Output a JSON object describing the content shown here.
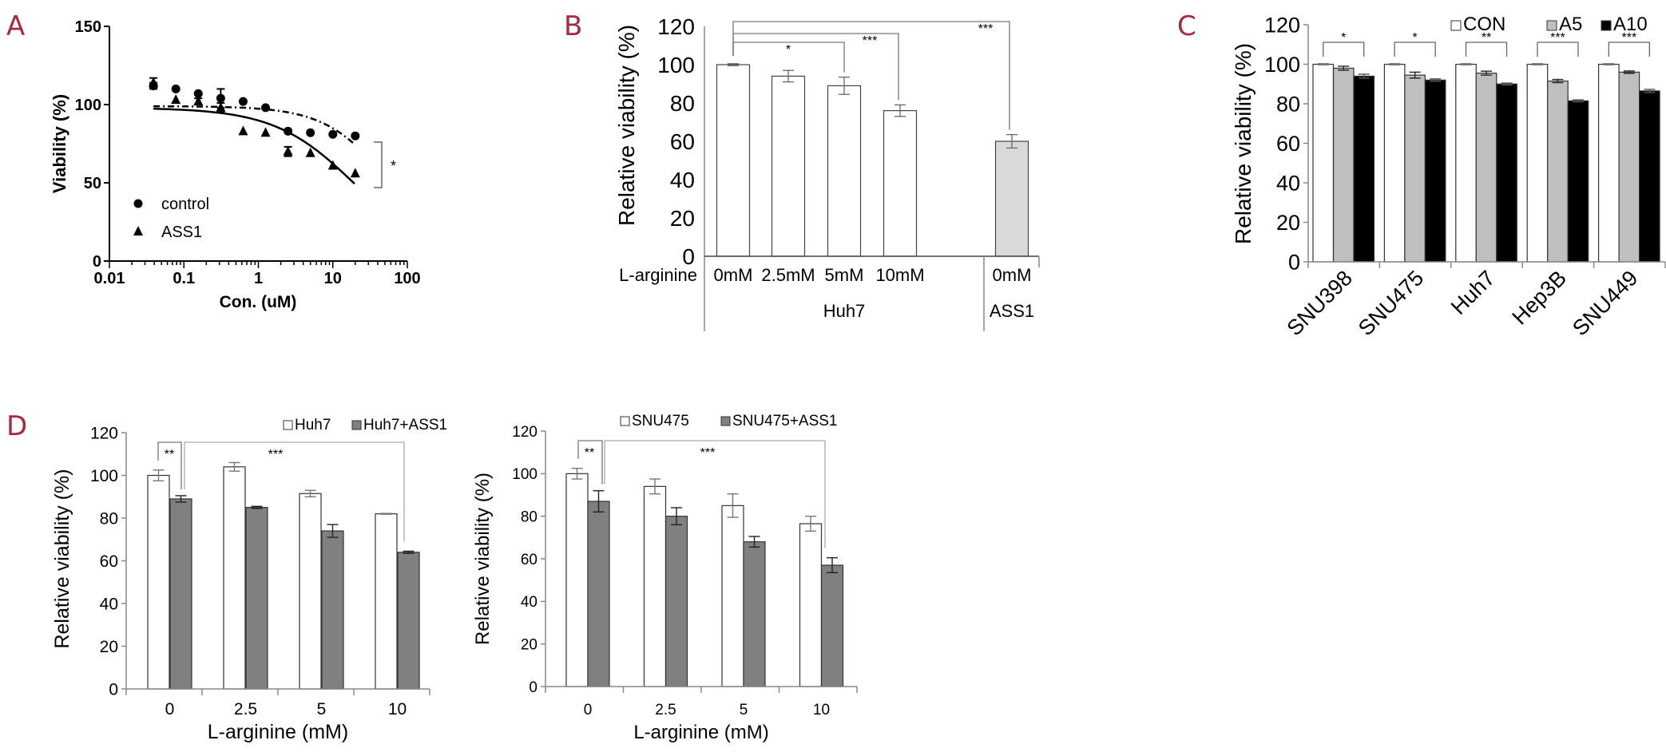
{
  "panels": {
    "labels": [
      "A",
      "B",
      "C",
      "D"
    ]
  },
  "colors": {
    "panel_label": "#a8283f",
    "white_bar": "#ffffff",
    "light_gray_bar": "#d9d9d9",
    "mid_gray_bar": "#bfbfbf",
    "dark_gray_bar": "#808080",
    "black_bar": "#000000"
  },
  "chart_data": [
    {
      "id": "A",
      "type": "scatter",
      "xscale": "log",
      "xlim": [
        0.01,
        100
      ],
      "ylim": [
        0,
        150
      ],
      "xticks": [
        "0.01",
        "0.1",
        "1",
        "10",
        "100"
      ],
      "yticks": [
        "0",
        "50",
        "100",
        "150"
      ],
      "xlabel": "Con. (uM)",
      "ylabel": "Viability (%)",
      "series": [
        {
          "name": "control",
          "marker": "circle",
          "fit_style": "dash-dot",
          "x": [
            0.039,
            0.078,
            0.156,
            0.3125,
            0.625,
            1.25,
            2.5,
            5,
            10,
            20
          ],
          "y": [
            112,
            110,
            107,
            104,
            102,
            98,
            83,
            82,
            81,
            80
          ],
          "err": [
            2,
            1.5,
            1.5,
            6,
            1,
            1,
            1,
            1,
            1,
            1
          ],
          "fit": {
            "top": 99,
            "bottom": 0,
            "ec50": 60,
            "hill": 1
          }
        },
        {
          "name": "ASS1",
          "marker": "triangle",
          "fit_style": "solid",
          "x": [
            0.039,
            0.078,
            0.156,
            0.3125,
            0.625,
            1.25,
            2.5,
            5,
            10,
            20
          ],
          "y": [
            114,
            103,
            102,
            98,
            83,
            82,
            70,
            69,
            61,
            56
          ],
          "err": [
            3,
            1,
            2,
            3,
            1,
            1,
            3,
            1,
            1,
            1
          ],
          "fit": {
            "top": 98,
            "bottom": 0,
            "ec50": 20,
            "hill": 0.8
          }
        }
      ],
      "legend": "bottom-left",
      "significance": [
        {
          "between": [
            "control",
            "ASS1"
          ],
          "text": "*"
        }
      ]
    },
    {
      "id": "B",
      "type": "bar",
      "ylim": [
        0,
        120
      ],
      "yticks": [
        "0",
        "20",
        "40",
        "60",
        "80",
        "100",
        "120"
      ],
      "ylabel": "Relative viability (%)",
      "row_label": "L-arginine",
      "categories": [
        "0mM",
        "2.5mM",
        "5mM",
        "10mM",
        "0mM"
      ],
      "groups": [
        {
          "label": "Huh7",
          "count": 4
        },
        {
          "label": "ASS1",
          "count": 1
        }
      ],
      "values": [
        100,
        94,
        89,
        76,
        60
      ],
      "errors": [
        0.5,
        3,
        4.5,
        3,
        3.5
      ],
      "bar_colors": [
        "#ffffff",
        "#ffffff",
        "#ffffff",
        "#ffffff",
        "#d9d9d9"
      ],
      "significance": [
        {
          "from": 0,
          "to": 2,
          "text": "*"
        },
        {
          "from": 0,
          "to": 3,
          "text": "***"
        },
        {
          "from": 0,
          "to": 4,
          "text": "***"
        }
      ]
    },
    {
      "id": "C",
      "type": "bar",
      "ylim": [
        0,
        120
      ],
      "yticks": [
        "0",
        "20",
        "40",
        "60",
        "80",
        "100",
        "120"
      ],
      "ylabel": "Relative viability (%)",
      "categories": [
        "SNU398",
        "SNU475",
        "Huh7",
        "Hep3B",
        "SNU449"
      ],
      "series": [
        {
          "name": "CON",
          "color": "#ffffff",
          "values": [
            100,
            100,
            100,
            100,
            100
          ],
          "errors": [
            0.3,
            0.3,
            0.3,
            0.3,
            0.3
          ]
        },
        {
          "name": "A5",
          "color": "#bfbfbf",
          "values": [
            98,
            94.5,
            95.5,
            91.5,
            96
          ],
          "errors": [
            1,
            1.5,
            1,
            0.8,
            0.6
          ]
        },
        {
          "name": "A10",
          "color": "#000000",
          "values": [
            94,
            92,
            90,
            81.5,
            86.5
          ],
          "errors": [
            1,
            0.6,
            0.5,
            0.5,
            0.8
          ]
        }
      ],
      "legend": "top-right",
      "significance": [
        "*",
        "*",
        "**",
        "***",
        "***"
      ]
    },
    {
      "id": "D-left",
      "type": "bar",
      "ylim": [
        0,
        120
      ],
      "yticks": [
        "0",
        "20",
        "40",
        "60",
        "80",
        "100",
        "120"
      ],
      "ylabel": "Relative viability (%)",
      "xlabel": "L-arginine (mM)",
      "categories": [
        "0",
        "2.5",
        "5",
        "10"
      ],
      "series": [
        {
          "name": "Huh7",
          "color": "#ffffff",
          "values": [
            100,
            104,
            91.5,
            82
          ],
          "errors": [
            2.5,
            2,
            1.5,
            0.2
          ]
        },
        {
          "name": "Huh7+ASS1",
          "color": "#808080",
          "values": [
            89,
            85,
            74,
            64
          ],
          "errors": [
            1.5,
            0.5,
            3,
            0.5
          ]
        }
      ],
      "legend": "top-right",
      "significance": [
        {
          "text": "**"
        },
        {
          "text": "***"
        }
      ]
    },
    {
      "id": "D-right",
      "type": "bar",
      "ylim": [
        0,
        120
      ],
      "yticks": [
        "0",
        "20",
        "40",
        "60",
        "80",
        "100",
        "120"
      ],
      "ylabel": "Relative viability (%)",
      "xlabel": "L-arginine (mM)",
      "categories": [
        "0",
        "2.5",
        "5",
        "10"
      ],
      "series": [
        {
          "name": "SNU475",
          "color": "#ffffff",
          "values": [
            100,
            94,
            85,
            76.5
          ],
          "errors": [
            2.5,
            3.5,
            5.5,
            3.5
          ]
        },
        {
          "name": "SNU475+ASS1",
          "color": "#808080",
          "values": [
            87,
            80,
            68,
            57
          ],
          "errors": [
            5,
            4,
            2.5,
            3.5
          ]
        }
      ],
      "legend": "top-right",
      "significance": [
        {
          "text": "**"
        },
        {
          "text": "***"
        }
      ]
    }
  ]
}
